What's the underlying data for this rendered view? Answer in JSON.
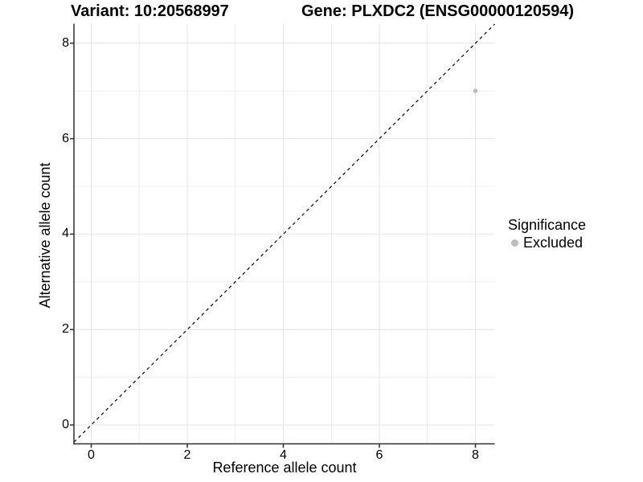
{
  "titles": {
    "variant": "Variant: 10:20568997",
    "gene": "Gene: PLXDC2 (ENSG00000120594)"
  },
  "axes": {
    "x": {
      "label": "Reference allele count",
      "ticks": [
        "0",
        "2",
        "4",
        "6",
        "8"
      ]
    },
    "y": {
      "label": "Alternative allele count",
      "ticks": [
        "0",
        "2",
        "4",
        "6",
        "8"
      ]
    }
  },
  "legend": {
    "title": "Significance",
    "items": [
      {
        "label": "Excluded",
        "color": "#bebebe",
        "marker": "circle-icon"
      }
    ]
  },
  "chart_data": {
    "type": "scatter",
    "title": "Variant: 10:20568997 / Gene: PLXDC2 (ENSG00000120594)",
    "xlabel": "Reference allele count",
    "ylabel": "Alternative allele count",
    "xlim": [
      -0.4,
      8.4
    ],
    "ylim": [
      -0.4,
      8.4
    ],
    "x_major_ticks": [
      0,
      2,
      4,
      6,
      8
    ],
    "x_minor_ticks": [
      1,
      3,
      5,
      7
    ],
    "y_major_ticks": [
      0,
      2,
      4,
      6,
      8
    ],
    "y_minor_ticks": [
      1,
      3,
      5,
      7
    ],
    "grid": true,
    "legend_position": "right",
    "series": [
      {
        "name": "Excluded",
        "color": "#bebebe",
        "point_radius": 2.8,
        "points": [
          {
            "x": 8,
            "y": 7
          }
        ]
      }
    ],
    "reference_line": {
      "type": "identity",
      "slope": 1,
      "intercept": 0,
      "style": "dashed",
      "color": "#000000"
    }
  },
  "colors": {
    "background": "#ffffff",
    "grid_major": "#e4e4e4",
    "grid_minor": "#efefef",
    "axis": "#2f2f2f",
    "point": "#bebebe"
  }
}
